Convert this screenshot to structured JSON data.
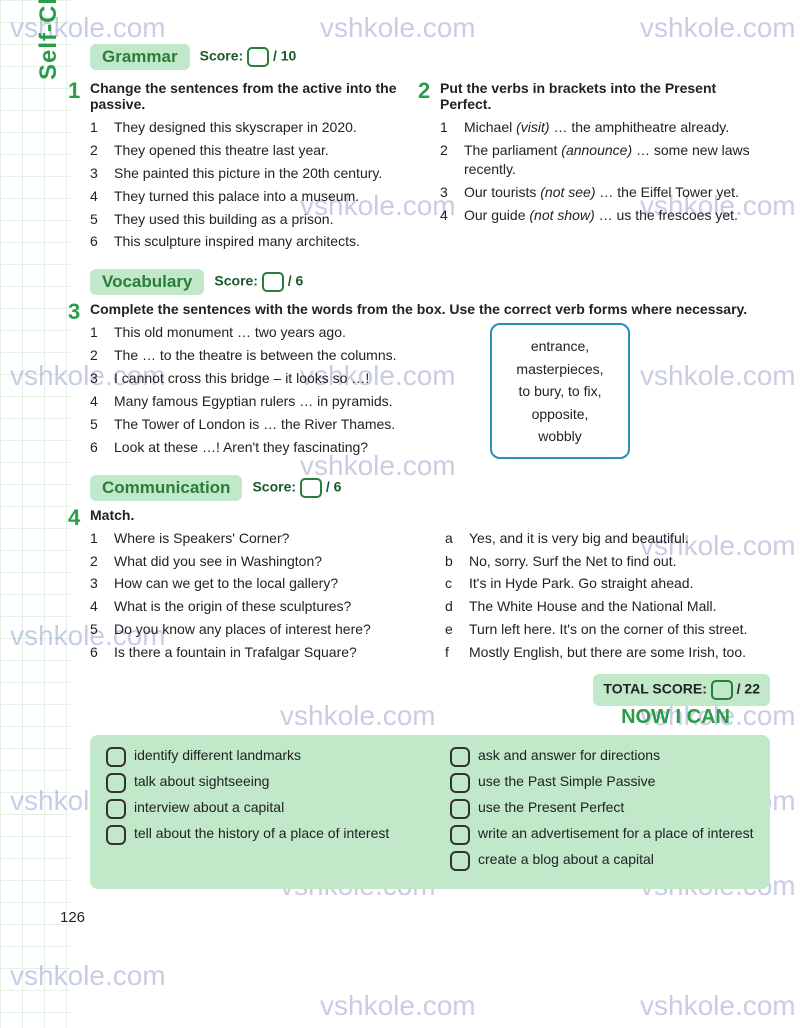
{
  "watermark_text": "vshkole.com",
  "self_check": "Self-Check",
  "page_number": "126",
  "sections": {
    "grammar": {
      "title": "Grammar",
      "score_label": "Score:",
      "score_max": "/ 10"
    },
    "vocabulary": {
      "title": "Vocabulary",
      "score_label": "Score:",
      "score_max": "/ 6"
    },
    "communication": {
      "title": "Communication",
      "score_label": "Score:",
      "score_max": "/ 6"
    }
  },
  "ex1": {
    "num": "1",
    "instruction": "Change the sentences from the active into the passive.",
    "items": [
      "They designed this skyscraper in 2020.",
      "They opened this theatre last year.",
      "She painted this picture in the 20th century.",
      "They turned this palace into a museum.",
      "They used this building as a prison.",
      "This sculpture inspired many architects."
    ]
  },
  "ex2": {
    "num": "2",
    "instruction": "Put the verbs in brackets into the Present Perfect.",
    "items": [
      {
        "pre": "Michael ",
        "it": "(visit)",
        "post": " … the amphitheatre already."
      },
      {
        "pre": "The parliament ",
        "it": "(announce)",
        "post": " … some new laws recently."
      },
      {
        "pre": "Our tourists ",
        "it": "(not see)",
        "post": " … the Eiffel Tower yet."
      },
      {
        "pre": "Our guide ",
        "it": "(not show)",
        "post": " … us the frescoes yet."
      }
    ]
  },
  "ex3": {
    "num": "3",
    "instruction": "Complete the sentences with the words from the box. Use the correct verb forms where necessary.",
    "items": [
      "This old monument … two years ago.",
      "The … to the theatre is between the columns.",
      "I cannot cross this bridge – it looks so …!",
      "Many famous Egyptian rulers … in pyramids.",
      "The Tower of London is … the River Thames.",
      "Look at these …! Aren't they fascinating?"
    ],
    "box": "entrance, masterpieces, to bury, to fix, opposite, wobbly"
  },
  "ex4": {
    "num": "4",
    "instruction": "Match.",
    "left": [
      "Where is Speakers' Corner?",
      "What did you see in Washington?",
      "How can we get to the local gallery?",
      "What is the origin of these sculptures?",
      "Do you know any places of interest here?",
      "Is there a fountain in Trafalgar Square?"
    ],
    "right": [
      "Yes, and it is very big and beautiful.",
      "No, sorry. Surf the Net to find out.",
      "It's in Hyde Park. Go straight ahead.",
      "The White House and the National Mall.",
      "Turn left here. It's on the corner of this street.",
      "Mostly English, but there are some Irish, too."
    ],
    "letters": [
      "a",
      "b",
      "c",
      "d",
      "e",
      "f"
    ]
  },
  "total_score": {
    "label": "TOTAL SCORE:",
    "max": "/ 22"
  },
  "now_i_can": {
    "title": "NOW I CAN",
    "left": [
      "identify different landmarks",
      "talk about sightseeing",
      "interview about a capital",
      "tell about the history of a place of interest"
    ],
    "right": [
      "ask and answer for directions",
      "use the Past Simple Passive",
      "use the Present Perfect",
      "write an advertisement for a place of interest",
      "create a blog about a capital"
    ]
  }
}
